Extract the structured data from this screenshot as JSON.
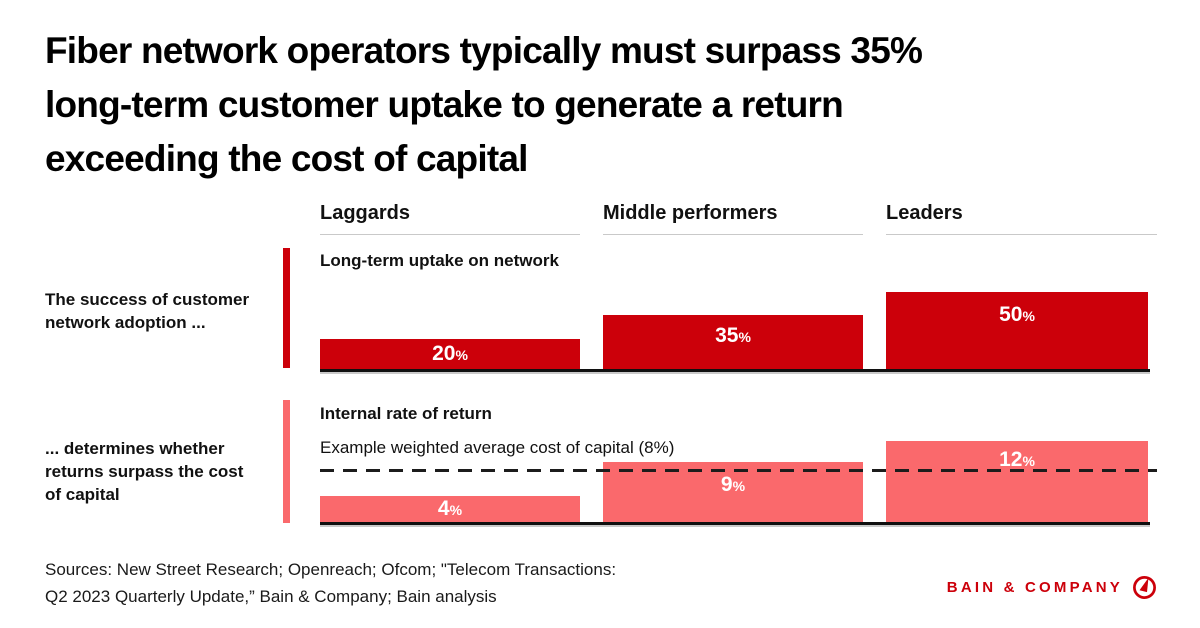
{
  "title_lines": [
    "Fiber network operators typically must surpass 35%",
    "long-term customer uptake to generate a return",
    "exceeding the cost of capital"
  ],
  "columns": [
    "Laggards",
    "Middle performers",
    "Leaders"
  ],
  "rows": [
    {
      "side_label_lines": [
        "The success of customer",
        "network adoption ..."
      ],
      "metric_label": "Long-term uptake on network",
      "unit": "%",
      "values": [
        20,
        35,
        50
      ]
    },
    {
      "side_label_lines": [
        "... determines whether",
        "returns surpass the cost",
        "of capital"
      ],
      "metric_label": "Internal rate of return",
      "reference_label": "Example weighted average cost of capital (8%)",
      "reference_value": 8,
      "unit": "%",
      "values": [
        4,
        9,
        12
      ]
    }
  ],
  "footer": {
    "sources_lines": [
      "Sources: New Street Research; Openreach; Ofcom; \"Telecom Transactions:",
      "Q2 2023 Quarterly Update,” Bain & Company; Bain analysis"
    ]
  },
  "logo": {
    "text": "BAIN & COMPANY"
  },
  "colors": {
    "bar_dark_red": "#cc000a",
    "bar_pink": "#fa696c",
    "logo_red": "#cc000a",
    "baseline_black": "#101010",
    "header_underline_gray": "#c9c9c9"
  },
  "chart_data": {
    "type": "bar",
    "categories": [
      "Laggards",
      "Middle performers",
      "Leaders"
    ],
    "series": [
      {
        "name": "Long-term uptake on network",
        "values": [
          20,
          35,
          50
        ],
        "unit": "%",
        "color": "#cc000a"
      },
      {
        "name": "Internal rate of return",
        "values": [
          4,
          9,
          12
        ],
        "unit": "%",
        "color": "#fa696c"
      }
    ],
    "reference_line": {
      "label": "Example weighted average cost of capital (8%)",
      "value": 8,
      "applies_to": "Internal rate of return",
      "style": "dashed"
    },
    "title": "Fiber network operators typically must surpass 35% long-term customer uptake to generate a return exceeding the cost of capital",
    "row_annotations": [
      "The success of customer network adoption ...",
      "... determines whether returns surpass the cost of capital"
    ],
    "value_labels_on_bars": true,
    "axes_hidden": true,
    "legend_position": "none"
  }
}
